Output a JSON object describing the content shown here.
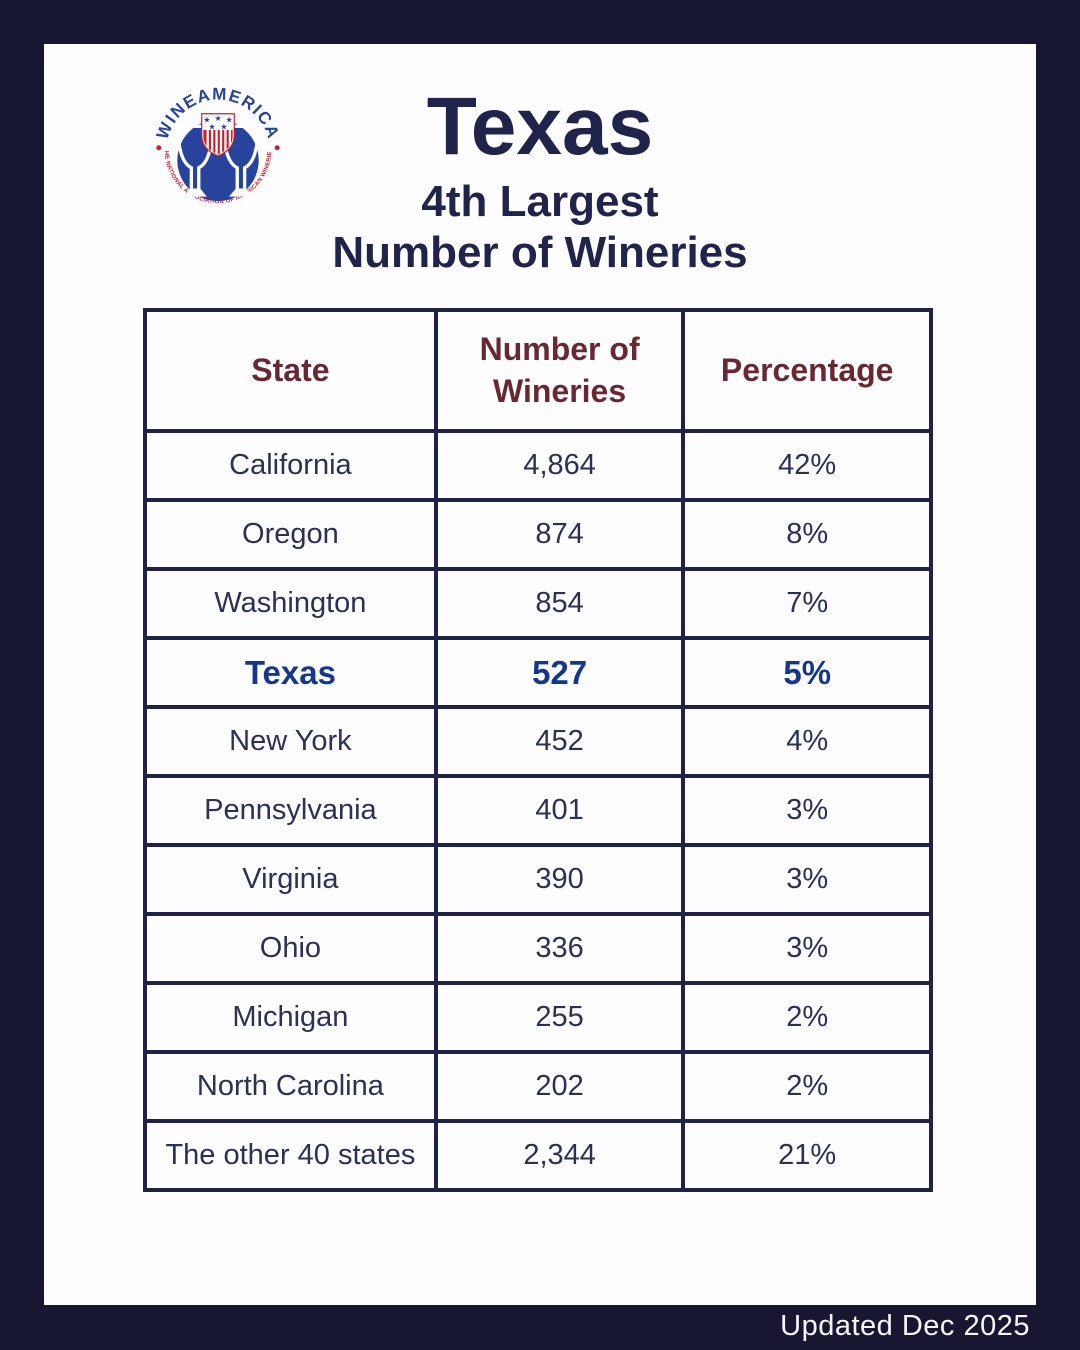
{
  "page": {
    "background_color": "#171731",
    "card_color": "#fdfdff"
  },
  "logo": {
    "name": "WineAmerica logo",
    "arc_top_text": "WINEAMERICA",
    "arc_bottom_text": "THE NATIONAL ASSOCIATION OF AMERICAN WINERIES",
    "blue": "#27439b",
    "red": "#c4202e"
  },
  "header": {
    "title": "Texas",
    "subtitle_line1": "4th Largest",
    "subtitle_line2": "Number of Wineries"
  },
  "chart_data": {
    "type": "table",
    "title": "Texas — 4th Largest Number of Wineries",
    "columns": [
      "State",
      "Number of Wineries",
      "Percentage"
    ],
    "header_text_color": "#682831",
    "highlight_row": "Texas",
    "highlight_color": "#16368c",
    "rows": [
      {
        "state": "California",
        "wineries": "4,864",
        "percentage": "42%"
      },
      {
        "state": "Oregon",
        "wineries": "874",
        "percentage": "8%"
      },
      {
        "state": "Washington",
        "wineries": "854",
        "percentage": "7%"
      },
      {
        "state": "Texas",
        "wineries": "527",
        "percentage": "5%",
        "highlight": true
      },
      {
        "state": "New York",
        "wineries": "452",
        "percentage": "4%"
      },
      {
        "state": "Pennsylvania",
        "wineries": "401",
        "percentage": "3%"
      },
      {
        "state": "Virginia",
        "wineries": "390",
        "percentage": "3%"
      },
      {
        "state": "Ohio",
        "wineries": "336",
        "percentage": "3%"
      },
      {
        "state": "Michigan",
        "wineries": "255",
        "percentage": "2%"
      },
      {
        "state": "North Carolina",
        "wineries": "202",
        "percentage": "2%"
      },
      {
        "state": "The other 40 states",
        "wineries": "2,344",
        "percentage": "21%"
      }
    ]
  },
  "footer": {
    "updated_text": "Updated Dec 2025"
  }
}
